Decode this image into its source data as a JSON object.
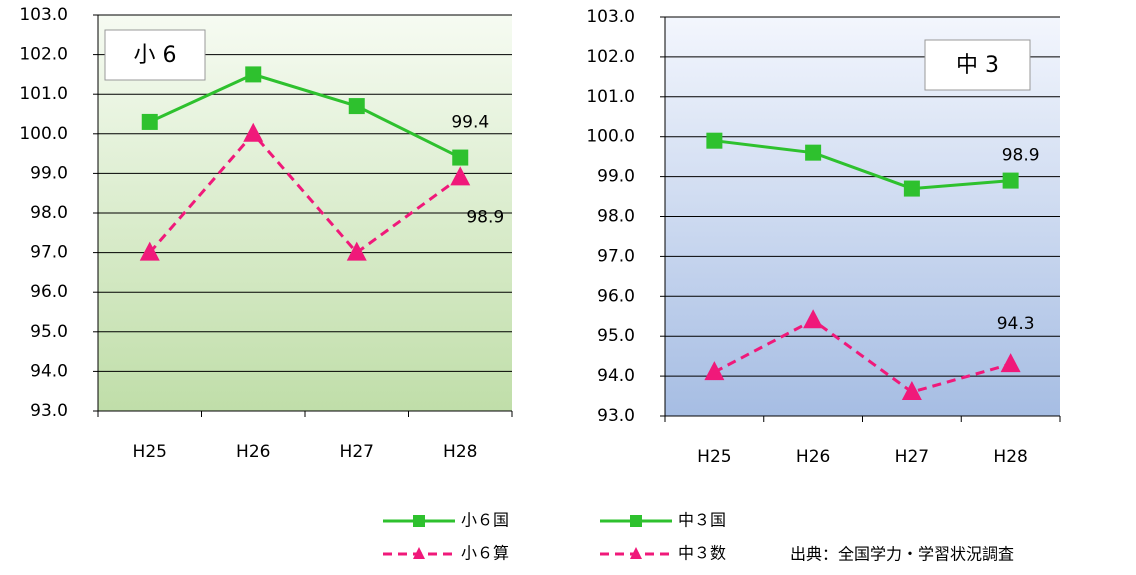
{
  "chart_data": [
    {
      "type": "line",
      "label": "小 6",
      "categories": [
        "H25",
        "H26",
        "H27",
        "H28"
      ],
      "ylim": [
        93,
        103
      ],
      "yticks": [
        {
          "value": 93,
          "label": "93.0"
        },
        {
          "value": 94,
          "label": "94.0"
        },
        {
          "value": 95,
          "label": "95.0"
        },
        {
          "value": 96,
          "label": "96.0"
        },
        {
          "value": 97,
          "label": "97.0"
        },
        {
          "value": 98,
          "label": "98.0"
        },
        {
          "value": 99,
          "label": "99.0"
        },
        {
          "value": 100,
          "label": "100.0"
        },
        {
          "value": 101,
          "label": "101.0"
        },
        {
          "value": 102,
          "label": "102.0"
        },
        {
          "value": 103,
          "label": "103.0"
        }
      ],
      "grid": true,
      "series": [
        {
          "name": "小６国",
          "color": "#2ec12e",
          "marker": "square",
          "dash": false,
          "values": [
            100.3,
            101.5,
            100.7,
            99.4
          ],
          "value_labels": [
            null,
            null,
            null,
            "99.4"
          ]
        },
        {
          "name": "小６算",
          "color": "#f0197a",
          "marker": "triangle",
          "dash": true,
          "values": [
            97.0,
            100.0,
            97.0,
            98.9
          ],
          "value_labels": [
            null,
            null,
            null,
            "98.9"
          ]
        }
      ]
    },
    {
      "type": "line",
      "label": "中 3",
      "categories": [
        "H25",
        "H26",
        "H27",
        "H28"
      ],
      "ylim": [
        93,
        103
      ],
      "yticks": [
        {
          "value": 93,
          "label": "93.0"
        },
        {
          "value": 94,
          "label": "94.0"
        },
        {
          "value": 95,
          "label": "95.0"
        },
        {
          "value": 96,
          "label": "96.0"
        },
        {
          "value": 97,
          "label": "97.0"
        },
        {
          "value": 98,
          "label": "98.0"
        },
        {
          "value": 99,
          "label": "99.0"
        },
        {
          "value": 100,
          "label": "100.0"
        },
        {
          "value": 101,
          "label": "101.0"
        },
        {
          "value": 102,
          "label": "102.0"
        },
        {
          "value": 103,
          "label": "103.0"
        }
      ],
      "grid": true,
      "series": [
        {
          "name": "中３国",
          "color": "#2ec12e",
          "marker": "square",
          "dash": false,
          "values": [
            99.9,
            99.6,
            98.7,
            98.9
          ],
          "value_labels": [
            null,
            null,
            null,
            "98.9"
          ]
        },
        {
          "name": "中３数",
          "color": "#f0197a",
          "marker": "triangle",
          "dash": true,
          "values": [
            94.1,
            95.4,
            93.6,
            94.3
          ],
          "value_labels": [
            null,
            null,
            null,
            "94.3"
          ]
        }
      ]
    }
  ],
  "source": "出典：全国学力・学習状況調査"
}
